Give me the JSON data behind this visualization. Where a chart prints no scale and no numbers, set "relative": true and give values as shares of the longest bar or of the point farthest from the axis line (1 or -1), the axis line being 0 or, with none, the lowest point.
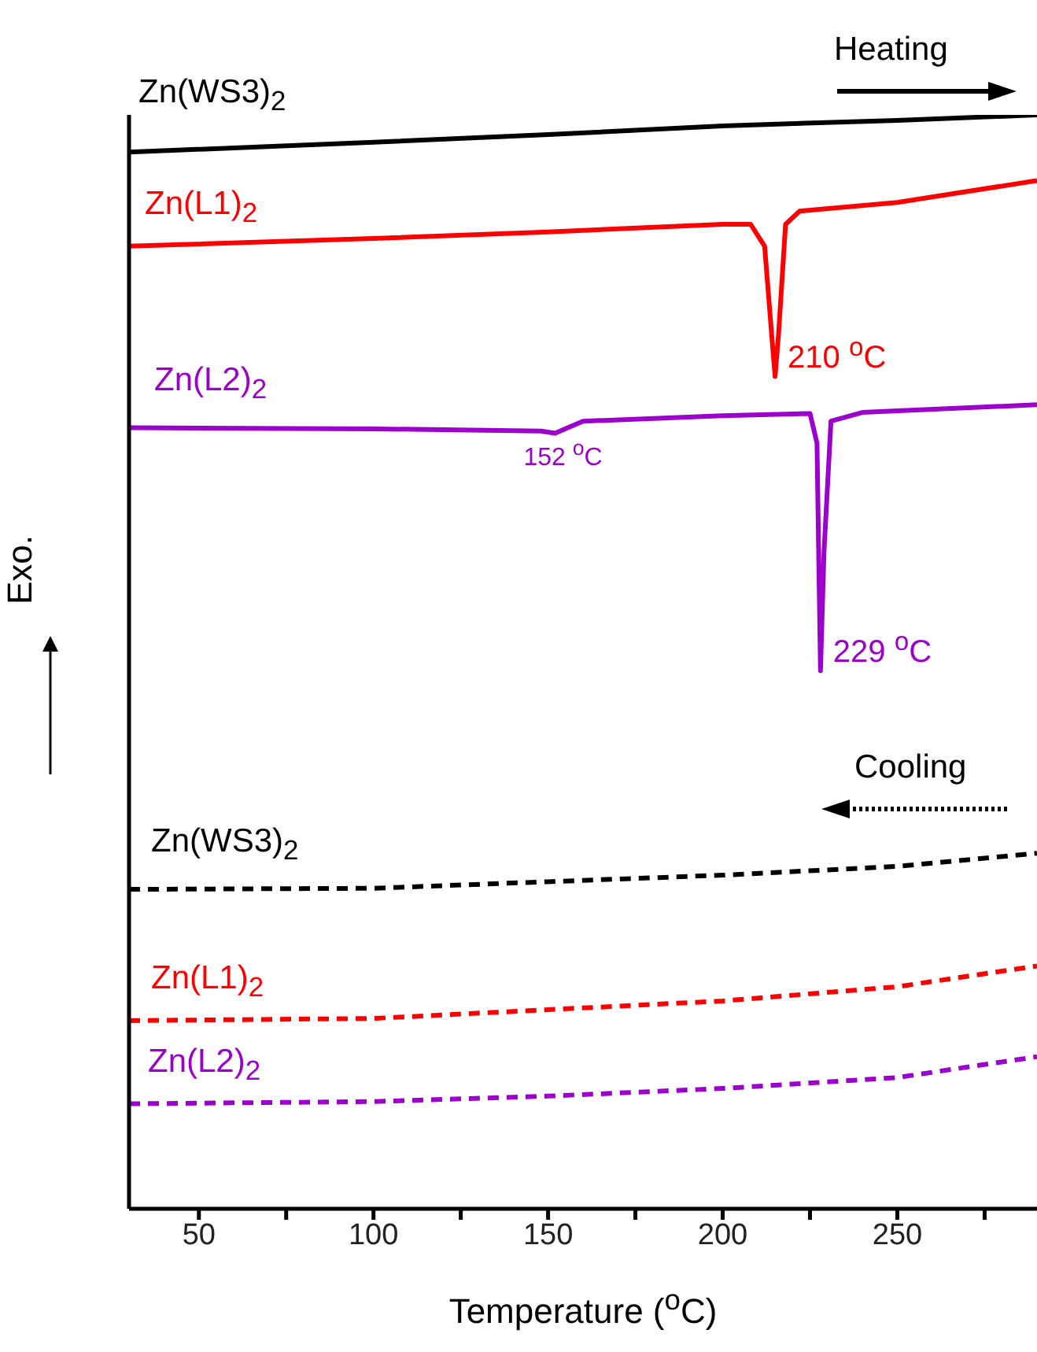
{
  "chart_data": {
    "type": "line",
    "relative": true,
    "xlabel": "Temperature ($^{o}$C)",
    "ylabel": "Exo.",
    "xlim": [
      30,
      290
    ],
    "xticks": [
      50,
      {
        "value": 75,
        "label": null
      },
      100,
      {
        "value": 125,
        "label": null
      },
      150,
      {
        "value": 175,
        "label": null
      },
      200,
      {
        "value": 225,
        "label": null
      },
      250,
      {
        "value": 275,
        "label": null
      }
    ],
    "grid": false,
    "legend": false,
    "marker": "none",
    "series": [
      {
        "name": "Zn(WS3)$_{2}$",
        "color": "#000000",
        "line_style": "solid",
        "x": [
          30,
          100,
          150,
          200,
          250,
          290
        ],
        "values": [
          0.966,
          0.975,
          0.982,
          0.99,
          0.995,
          1.0
        ]
      },
      {
        "name": "Zn(L1)$_{2}$",
        "color": "#ff0000",
        "line_style": "solid",
        "x": [
          30,
          100,
          150,
          200,
          208,
          212,
          214,
          215,
          216,
          218,
          222,
          250,
          290
        ],
        "values": [
          0.88,
          0.887,
          0.893,
          0.9,
          0.9,
          0.88,
          0.8,
          0.761,
          0.8,
          0.9,
          0.912,
          0.92,
          0.94
        ]
      },
      {
        "name": "Zn(L2)$_{2}$",
        "color": "#9b00cc",
        "line_style": "solid",
        "x": [
          30,
          100,
          148,
          152,
          160,
          200,
          225,
          227,
          228,
          229,
          231,
          240,
          290
        ],
        "values": [
          0.714,
          0.713,
          0.711,
          0.709,
          0.72,
          0.725,
          0.727,
          0.7,
          0.492,
          0.6,
          0.72,
          0.728,
          0.735
        ]
      },
      {
        "name": "Zn(WS3)$_{2}$",
        "color": "#000000",
        "line_style": "dashed",
        "x": [
          30,
          100,
          150,
          200,
          250,
          290
        ],
        "values": [
          0.292,
          0.293,
          0.299,
          0.305,
          0.313,
          0.325
        ]
      },
      {
        "name": "Zn(L1)$_{2}$",
        "color": "#ff0000",
        "line_style": "dashed",
        "x": [
          30,
          100,
          150,
          200,
          250,
          290
        ],
        "values": [
          0.172,
          0.174,
          0.182,
          0.19,
          0.203,
          0.222
        ]
      },
      {
        "name": "Zn(L2)$_{2}$",
        "color": "#9b00cc",
        "line_style": "dashed",
        "x": [
          30,
          100,
          150,
          200,
          250,
          290
        ],
        "values": [
          0.096,
          0.098,
          0.103,
          0.11,
          0.12,
          0.139
        ]
      }
    ],
    "annotations": [
      "Heating",
      "Cooling",
      {
        "text": "210 $^{o}$C",
        "x": 215,
        "y": 0.761
      },
      {
        "text": "152 $^{o}$C",
        "x": 152,
        "y": 0.709
      },
      {
        "text": "229 $^{o}$C",
        "x": 228,
        "y": 0.492
      }
    ]
  }
}
